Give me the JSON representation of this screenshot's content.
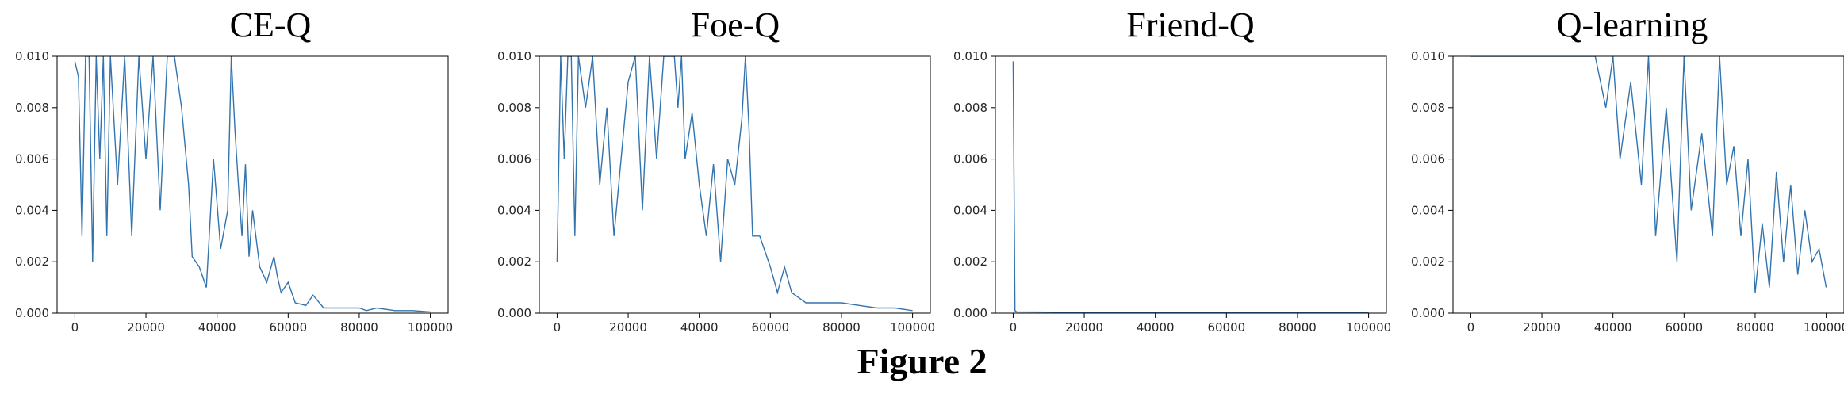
{
  "figure": {
    "caption": "Figure 2"
  },
  "chart_data": [
    {
      "type": "line",
      "title": "CE-Q",
      "xlabel": "",
      "ylabel": "",
      "xlim": [
        -5000,
        105000
      ],
      "ylim": [
        0,
        0.01
      ],
      "xticks": [
        "0",
        "20000",
        "40000",
        "60000",
        "80000",
        "100000"
      ],
      "yticks": [
        "0.000",
        "0.002",
        "0.004",
        "0.006",
        "0.008",
        "0.010"
      ],
      "series": [
        {
          "color": "#3274b0",
          "x": [
            0,
            1000,
            2000,
            3000,
            4000,
            5000,
            6000,
            7000,
            8000,
            9000,
            10000,
            12000,
            14000,
            16000,
            18000,
            20000,
            22000,
            24000,
            26000,
            28000,
            30000,
            32000,
            33000,
            35000,
            37000,
            39000,
            41000,
            43000,
            44000,
            45000,
            46000,
            47000,
            48000,
            49000,
            50000,
            52000,
            54000,
            56000,
            57000,
            58000,
            60000,
            62000,
            65000,
            67000,
            70000,
            75000,
            80000,
            82000,
            85000,
            90000,
            95000,
            100000
          ],
          "y": [
            0.0098,
            0.0092,
            0.003,
            0.01,
            0.01,
            0.002,
            0.01,
            0.006,
            0.01,
            0.003,
            0.01,
            0.005,
            0.01,
            0.003,
            0.01,
            0.006,
            0.01,
            0.004,
            0.01,
            0.01,
            0.008,
            0.005,
            0.0022,
            0.0018,
            0.001,
            0.006,
            0.0025,
            0.004,
            0.01,
            0.0072,
            0.005,
            0.003,
            0.0058,
            0.0022,
            0.004,
            0.0018,
            0.0012,
            0.0022,
            0.0014,
            0.0008,
            0.0012,
            0.0004,
            0.0003,
            0.0007,
            0.0002,
            0.0002,
            0.0002,
            0.0001,
            0.0002,
            0.0001,
            0.0001,
            5e-05
          ]
        }
      ]
    },
    {
      "type": "line",
      "title": "Foe-Q",
      "xlabel": "",
      "ylabel": "",
      "xlim": [
        -5000,
        105000
      ],
      "ylim": [
        0,
        0.01
      ],
      "xticks": [
        "0",
        "20000",
        "40000",
        "60000",
        "80000",
        "100000"
      ],
      "yticks": [
        "0.000",
        "0.002",
        "0.004",
        "0.006",
        "0.008",
        "0.010"
      ],
      "series": [
        {
          "color": "#3274b0",
          "x": [
            0,
            1000,
            2000,
            3000,
            4000,
            5000,
            6000,
            8000,
            10000,
            12000,
            14000,
            16000,
            18000,
            20000,
            22000,
            24000,
            26000,
            28000,
            30000,
            31000,
            32000,
            33000,
            34000,
            35000,
            36000,
            38000,
            40000,
            42000,
            44000,
            46000,
            48000,
            50000,
            52000,
            53000,
            54000,
            55000,
            57000,
            60000,
            62000,
            64000,
            66000,
            70000,
            75000,
            80000,
            85000,
            90000,
            95000,
            100000
          ],
          "y": [
            0.002,
            0.01,
            0.006,
            0.01,
            0.01,
            0.003,
            0.01,
            0.008,
            0.01,
            0.005,
            0.008,
            0.003,
            0.006,
            0.009,
            0.01,
            0.004,
            0.01,
            0.006,
            0.01,
            0.01,
            0.01,
            0.01,
            0.008,
            0.01,
            0.006,
            0.0078,
            0.005,
            0.003,
            0.0058,
            0.002,
            0.006,
            0.005,
            0.0076,
            0.01,
            0.0072,
            0.003,
            0.003,
            0.0018,
            0.0008,
            0.0018,
            0.0008,
            0.0004,
            0.0004,
            0.0004,
            0.0003,
            0.0002,
            0.0002,
            0.0001
          ]
        }
      ]
    },
    {
      "type": "line",
      "title": "Friend-Q",
      "xlabel": "",
      "ylabel": "",
      "xlim": [
        -5000,
        105000
      ],
      "ylim": [
        0,
        0.01
      ],
      "xticks": [
        "0",
        "20000",
        "40000",
        "60000",
        "80000",
        "100000"
      ],
      "yticks": [
        "0.000",
        "0.002",
        "0.004",
        "0.006",
        "0.008",
        "0.010"
      ],
      "series": [
        {
          "color": "#3274b0",
          "x": [
            0,
            500,
            1000,
            20000,
            40000,
            60000,
            80000,
            100000
          ],
          "y": [
            0.0098,
            0.0001,
            5e-05,
            3e-05,
            3e-05,
            2e-05,
            2e-05,
            2e-05
          ]
        }
      ]
    },
    {
      "type": "line",
      "title": "Q-learning",
      "xlabel": "",
      "ylabel": "",
      "xlim": [
        -5000,
        105000
      ],
      "ylim": [
        0,
        0.01
      ],
      "xticks": [
        "0",
        "20000",
        "40000",
        "60000",
        "80000",
        "100000"
      ],
      "yticks": [
        "0.000",
        "0.002",
        "0.004",
        "0.006",
        "0.008",
        "0.010"
      ],
      "series": [
        {
          "color": "#3274b0",
          "x": [
            0,
            2000,
            5000,
            10000,
            15000,
            20000,
            25000,
            30000,
            35000,
            38000,
            40000,
            42000,
            45000,
            48000,
            50000,
            52000,
            55000,
            58000,
            60000,
            62000,
            65000,
            68000,
            70000,
            72000,
            74000,
            76000,
            78000,
            80000,
            82000,
            84000,
            86000,
            88000,
            90000,
            92000,
            94000,
            96000,
            98000,
            100000
          ],
          "y": [
            0.01,
            0.01,
            0.01,
            0.01,
            0.01,
            0.01,
            0.01,
            0.01,
            0.01,
            0.008,
            0.01,
            0.006,
            0.009,
            0.005,
            0.01,
            0.003,
            0.008,
            0.002,
            0.01,
            0.004,
            0.007,
            0.003,
            0.01,
            0.005,
            0.0065,
            0.003,
            0.006,
            0.0008,
            0.0035,
            0.001,
            0.0055,
            0.002,
            0.005,
            0.0015,
            0.004,
            0.002,
            0.0025,
            0.001
          ]
        }
      ]
    }
  ]
}
